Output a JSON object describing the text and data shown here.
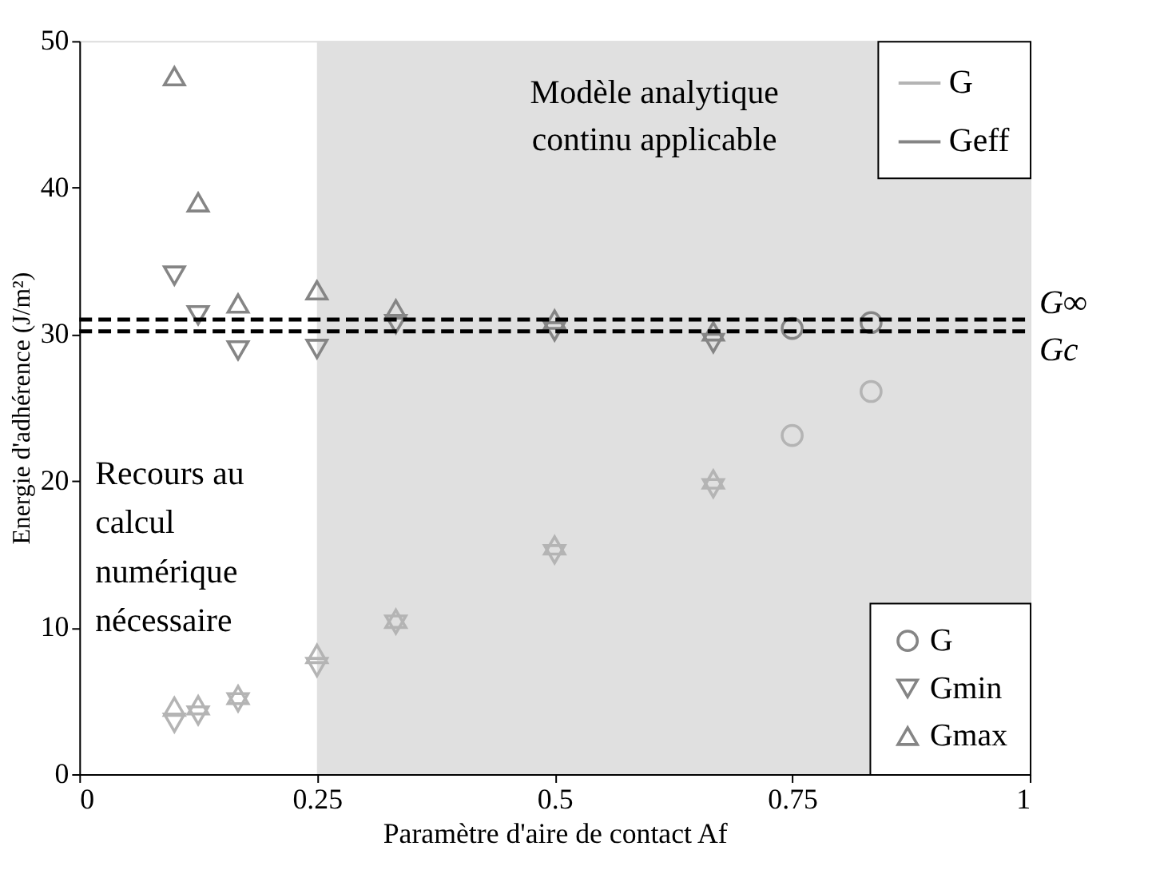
{
  "chart_data": {
    "type": "scatter",
    "xlabel": "Paramètre d'aire de contact  Af",
    "ylabel": "Energie d'adhérence (J/m²)",
    "xlim": [
      0,
      1
    ],
    "xticks": [
      0,
      0.25,
      0.5,
      0.75,
      1
    ],
    "ylim": [
      0,
      50
    ],
    "yticks": [
      0,
      10,
      20,
      30,
      40,
      50
    ],
    "grid": false,
    "legend": "bottom right",
    "series": [
      {
        "name": "G",
        "color": "#858585",
        "marker": "circle",
        "x": [
          0.75,
          0.833
        ],
        "values": [
          30.4,
          30.8
        ]
      },
      {
        "name": "Gmin",
        "color": "#858585",
        "marker": "triangle-down",
        "x": [
          0.1,
          0.125,
          0.167,
          0.25,
          0.333,
          0.5,
          0.667
        ],
        "values": [
          34.0,
          31.3,
          28.9,
          29.0,
          30.7,
          30.2,
          29.4
        ]
      },
      {
        "name": "Gmax",
        "color": "#858585",
        "marker": "triangle",
        "x": [
          0.1,
          0.125,
          0.167,
          0.25,
          0.333,
          0.5,
          0.667
        ],
        "values": [
          47.6,
          39.0,
          32.1,
          33.0,
          31.7,
          31.0,
          30.2
        ]
      },
      {
        "color": "#b4b4b4",
        "marker": "circle",
        "x": [
          0.75,
          0.833
        ],
        "values": [
          23.1,
          26.1
        ]
      },
      {
        "color": "#b4b4b4",
        "marker": "triangle-down",
        "x": [
          0.1,
          0.125,
          0.167,
          0.25,
          0.333,
          0.5,
          0.667
        ],
        "values": [
          3.5,
          4.0,
          4.9,
          7.3,
          10.2,
          15.0,
          19.5
        ]
      },
      {
        "color": "#b4b4b4",
        "marker": "triangle",
        "x": [
          0.1,
          0.125,
          0.167,
          0.25,
          0.333,
          0.5,
          0.667
        ],
        "values": [
          4.6,
          4.7,
          5.4,
          8.2,
          10.6,
          15.6,
          20.1
        ]
      }
    ],
    "ref_lines": [
      {
        "axis": "y",
        "value": 31.0,
        "label": "G∞",
        "color": "#000000",
        "line_style": "dashed"
      },
      {
        "axis": "y",
        "value": 30.2,
        "label": "Gc",
        "color": "#000000",
        "line_style": "dashed"
      }
    ],
    "bands": [
      {
        "axis": "x",
        "from": 0.25,
        "to": 1,
        "label": "Modèle analytique\ncontinu applicable",
        "color": "#e0e0e0"
      }
    ],
    "annotations": [
      "Recours au\ncalcul\nnumérique\nnécessaire",
      "G",
      "Geff"
    ]
  }
}
